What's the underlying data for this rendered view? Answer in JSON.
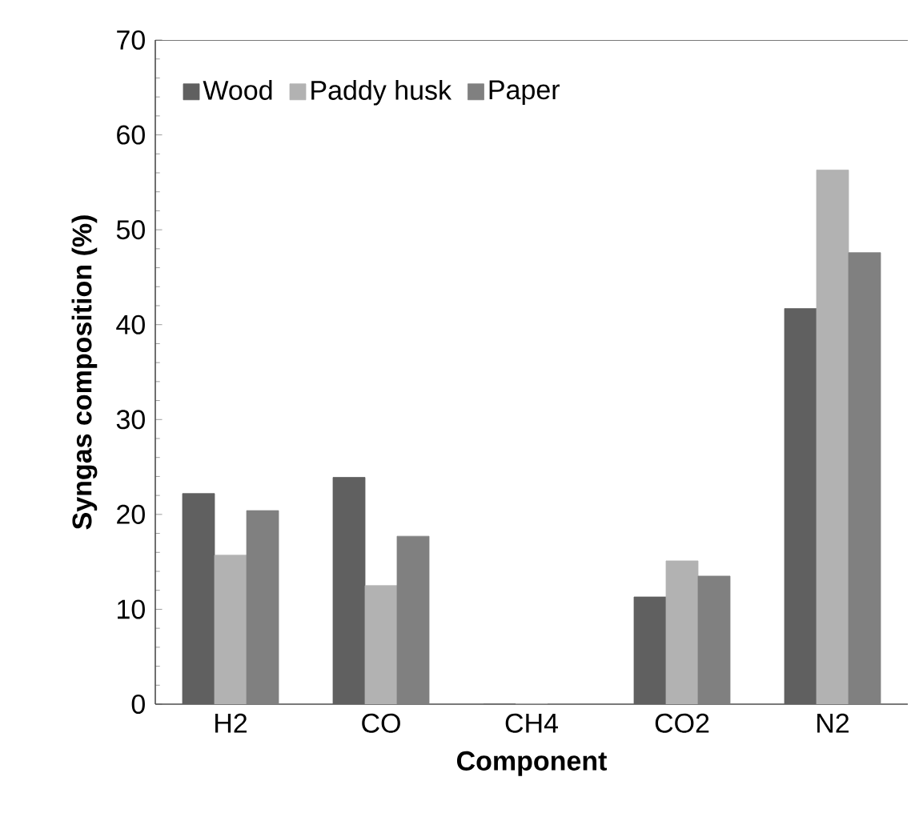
{
  "chart_data": {
    "type": "bar",
    "xlabel": "Component",
    "ylabel": "Syngas composition (%)",
    "categories": [
      "H2",
      "CO",
      "CH4",
      "CO2",
      "N2"
    ],
    "series": [
      {
        "name": "Wood",
        "color": "#606060",
        "values": [
          22.2,
          23.9,
          0,
          11.3,
          41.7
        ]
      },
      {
        "name": "Paddy husk",
        "color": "#b2b2b2",
        "values": [
          15.7,
          12.5,
          0,
          15.1,
          56.3
        ]
      },
      {
        "name": "Paper",
        "color": "#808080",
        "values": [
          20.4,
          17.7,
          0,
          13.5,
          47.6
        ]
      }
    ],
    "ylim": [
      0,
      70
    ],
    "yticks": [
      0,
      10,
      20,
      30,
      40,
      50,
      60,
      70
    ],
    "grid": false,
    "legend": "top left"
  }
}
